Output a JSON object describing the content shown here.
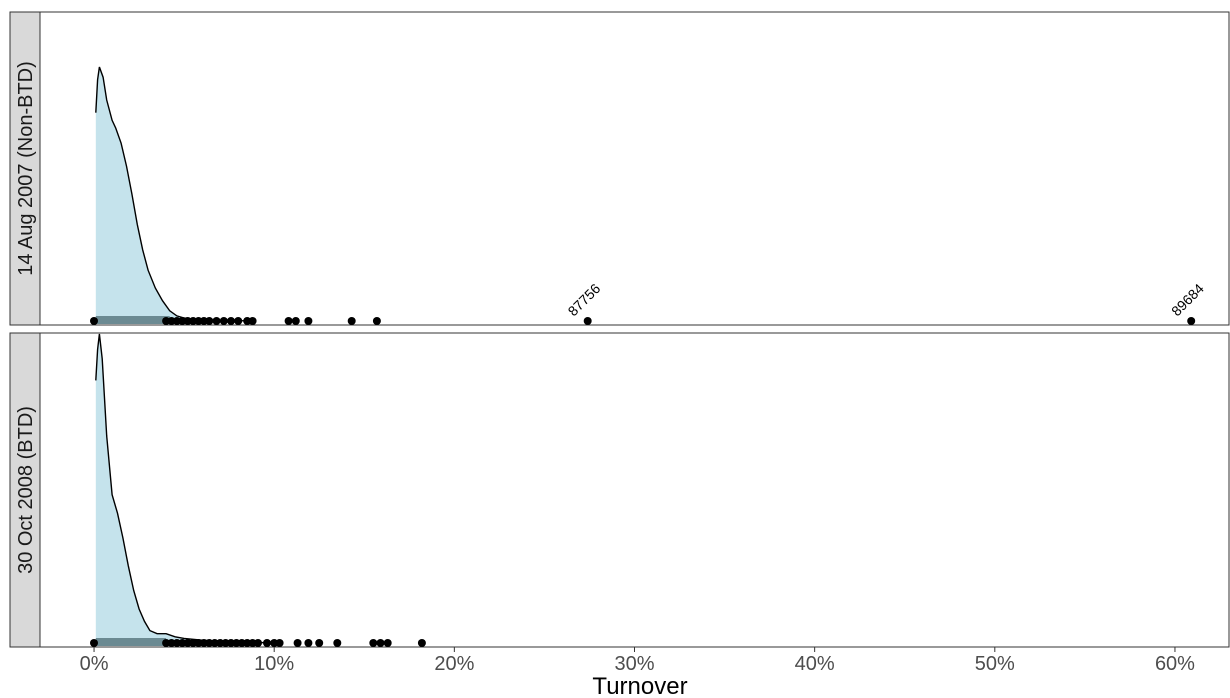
{
  "chart_data": {
    "type": "density",
    "xlabel": "Turnover",
    "x_ticks": [
      "0%",
      "10%",
      "20%",
      "30%",
      "40%",
      "50%",
      "60%"
    ],
    "x_tick_values": [
      0,
      10,
      20,
      30,
      40,
      50,
      60
    ],
    "xlim": [
      -3,
      63
    ],
    "grid": false,
    "colors": {
      "density_fill": "#c5e3ec",
      "density_line": "#000000",
      "box_fill": "#6b8a92",
      "strip_fill": "#d9d9d9",
      "points": "#000000"
    },
    "panels": [
      {
        "label": "14 Aug 2007 (Non-BTD)",
        "density": [
          [
            0.1,
            0.82
          ],
          [
            0.2,
            0.95
          ],
          [
            0.3,
            1.0
          ],
          [
            0.5,
            0.96
          ],
          [
            0.7,
            0.87
          ],
          [
            1.0,
            0.79
          ],
          [
            1.2,
            0.76
          ],
          [
            1.5,
            0.7
          ],
          [
            1.8,
            0.61
          ],
          [
            2.1,
            0.5
          ],
          [
            2.4,
            0.38
          ],
          [
            2.7,
            0.28
          ],
          [
            3.0,
            0.2
          ],
          [
            3.4,
            0.13
          ],
          [
            3.8,
            0.08
          ],
          [
            4.2,
            0.04
          ],
          [
            4.6,
            0.02
          ],
          [
            5.0,
            0.012
          ],
          [
            5.5,
            0.006
          ],
          [
            6.0,
            0.008
          ],
          [
            6.5,
            0.004
          ],
          [
            7.0,
            0.002
          ],
          [
            8.0,
            0.001
          ],
          [
            9.0,
            0.0
          ]
        ],
        "box": [
          0.1,
          4.2
        ],
        "points": [
          0.0,
          4.0,
          4.3,
          4.6,
          4.9,
          5.2,
          5.5,
          5.8,
          6.1,
          6.4,
          6.8,
          7.2,
          7.6,
          8.0,
          8.5,
          8.8,
          10.8,
          11.2,
          11.9,
          14.3,
          15.7,
          27.4,
          60.9
        ],
        "labeled_points": [
          {
            "x": 27.4,
            "label": "87756"
          },
          {
            "x": 60.9,
            "label": "89684"
          }
        ]
      },
      {
        "label": "30 Oct 2008 (BTD)",
        "density": [
          [
            0.1,
            0.85
          ],
          [
            0.2,
            0.95
          ],
          [
            0.3,
            1.0
          ],
          [
            0.45,
            0.92
          ],
          [
            0.7,
            0.67
          ],
          [
            1.0,
            0.48
          ],
          [
            1.3,
            0.42
          ],
          [
            1.6,
            0.34
          ],
          [
            1.9,
            0.25
          ],
          [
            2.2,
            0.17
          ],
          [
            2.5,
            0.11
          ],
          [
            2.8,
            0.07
          ],
          [
            3.1,
            0.04
          ],
          [
            3.5,
            0.03
          ],
          [
            4.0,
            0.03
          ],
          [
            4.5,
            0.02
          ],
          [
            5.0,
            0.015
          ],
          [
            6.0,
            0.009
          ],
          [
            7.0,
            0.006
          ],
          [
            8.0,
            0.004
          ],
          [
            9.0,
            0.002
          ],
          [
            10.0,
            0.0
          ]
        ],
        "box": [
          0.1,
          4.0
        ],
        "points": [
          0.0,
          4.0,
          4.3,
          4.6,
          4.9,
          5.2,
          5.5,
          5.8,
          6.1,
          6.4,
          6.7,
          7.0,
          7.3,
          7.6,
          7.9,
          8.2,
          8.5,
          8.8,
          9.1,
          9.6,
          10.0,
          10.3,
          11.3,
          11.9,
          12.5,
          13.5,
          15.5,
          15.9,
          16.3,
          18.2
        ],
        "labeled_points": []
      }
    ]
  }
}
